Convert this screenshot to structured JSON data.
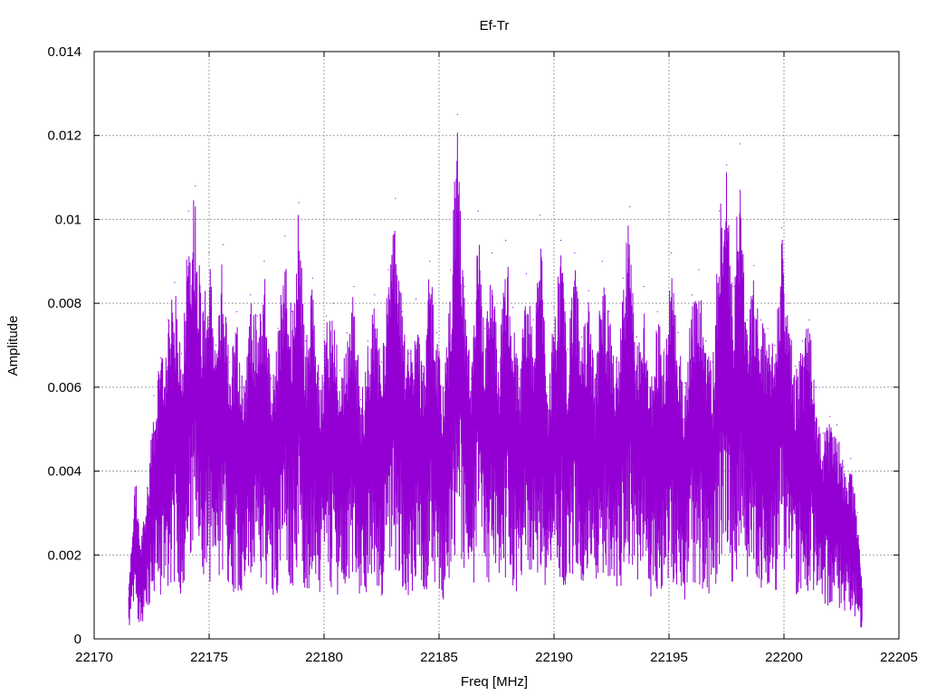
{
  "chart_data": {
    "type": "line",
    "title": "Ef-Tr",
    "xlabel": "Freq [MHz]",
    "ylabel": "Amplitude",
    "xlim": [
      22170,
      22205
    ],
    "ylim": [
      0,
      0.014
    ],
    "xticks": [
      22170,
      22175,
      22180,
      22185,
      22190,
      22195,
      22200,
      22205
    ],
    "xtick_labels": [
      "22170",
      "22175",
      "22180",
      "22185",
      "22190",
      "22195",
      "22200",
      "22205"
    ],
    "yticks": [
      0,
      0.002,
      0.004,
      0.006,
      0.008,
      0.01,
      0.012,
      0.014
    ],
    "ytick_labels": [
      "0",
      "0.002",
      "0.004",
      "0.006",
      "0.008",
      "0.01",
      "0.012",
      "0.014"
    ],
    "grid": true,
    "line_color": "#9400d3",
    "series": [
      {
        "name": "",
        "x": [
          22171.5,
          22171.8,
          22172.0,
          22172.3,
          22172.6,
          22172.9,
          22173.2,
          22173.5,
          22173.8,
          22174.1,
          22174.4,
          22174.7,
          22175.0,
          22175.3,
          22175.6,
          22175.9,
          22176.2,
          22176.5,
          22176.8,
          22177.1,
          22177.4,
          22177.7,
          22178.0,
          22178.3,
          22178.6,
          22178.9,
          22179.2,
          22179.5,
          22179.8,
          22180.1,
          22180.4,
          22180.7,
          22181.0,
          22181.3,
          22181.6,
          22181.9,
          22182.2,
          22182.5,
          22182.8,
          22183.1,
          22183.4,
          22183.7,
          22184.0,
          22184.3,
          22184.6,
          22184.9,
          22185.2,
          22185.5,
          22185.8,
          22186.1,
          22186.4,
          22186.7,
          22187.0,
          22187.3,
          22187.6,
          22187.9,
          22188.2,
          22188.5,
          22188.8,
          22189.1,
          22189.4,
          22189.7,
          22190.0,
          22190.3,
          22190.6,
          22190.9,
          22191.2,
          22191.5,
          22191.8,
          22192.1,
          22192.4,
          22192.7,
          22193.0,
          22193.3,
          22193.6,
          22193.9,
          22194.2,
          22194.5,
          22194.8,
          22195.1,
          22195.4,
          22195.7,
          22196.0,
          22196.3,
          22196.6,
          22196.9,
          22197.2,
          22197.5,
          22197.8,
          22198.1,
          22198.4,
          22198.7,
          22199.0,
          22199.3,
          22199.6,
          22199.9,
          22200.2,
          22200.5,
          22200.8,
          22201.1,
          22201.4,
          22201.7,
          22202.0,
          22202.3,
          22202.6,
          22202.9,
          22203.2,
          22203.4
        ],
        "values": [
          0.0012,
          0.004,
          0.0022,
          0.0036,
          0.0058,
          0.0067,
          0.0076,
          0.0085,
          0.0068,
          0.0102,
          0.0108,
          0.008,
          0.0092,
          0.007,
          0.0094,
          0.0066,
          0.0078,
          0.006,
          0.0082,
          0.0077,
          0.009,
          0.0062,
          0.0074,
          0.0096,
          0.0078,
          0.0104,
          0.0071,
          0.0086,
          0.0062,
          0.0077,
          0.008,
          0.0064,
          0.0073,
          0.0084,
          0.0057,
          0.0071,
          0.0082,
          0.0066,
          0.0088,
          0.0105,
          0.0078,
          0.0068,
          0.0081,
          0.0065,
          0.009,
          0.0073,
          0.006,
          0.0088,
          0.0125,
          0.0084,
          0.0062,
          0.0102,
          0.0074,
          0.0092,
          0.0066,
          0.0095,
          0.0079,
          0.0062,
          0.0087,
          0.0076,
          0.0101,
          0.0058,
          0.0079,
          0.0095,
          0.0069,
          0.0092,
          0.0072,
          0.0083,
          0.0062,
          0.009,
          0.0078,
          0.0066,
          0.0086,
          0.0103,
          0.0072,
          0.0084,
          0.006,
          0.0078,
          0.0069,
          0.0092,
          0.0073,
          0.0061,
          0.0082,
          0.0088,
          0.0071,
          0.0066,
          0.0102,
          0.0113,
          0.0084,
          0.0118,
          0.0076,
          0.0089,
          0.0076,
          0.0074,
          0.007,
          0.0098,
          0.008,
          0.0065,
          0.0071,
          0.0076,
          0.006,
          0.0049,
          0.0053,
          0.0051,
          0.0041,
          0.0043,
          0.003,
          0.0012
        ]
      }
    ]
  }
}
